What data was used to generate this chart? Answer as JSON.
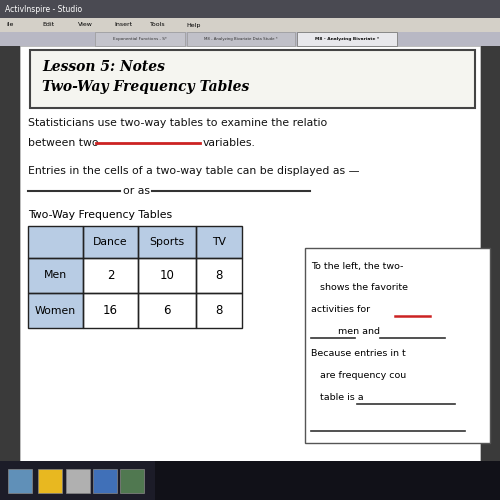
{
  "bg_color": "#3a3a3a",
  "slide_bg": "#ffffff",
  "title_text1": "Lesson 5: Notes",
  "title_text2": "Two-Way Frequency Tables",
  "table_title": "Two-Way Frequency Tables",
  "table_header_labels": [
    "Dance",
    "Sports",
    "TV"
  ],
  "table_row_labels": [
    "Men",
    "Women"
  ],
  "table_data": [
    [
      2,
      10,
      8
    ],
    [
      16,
      6,
      8
    ]
  ],
  "table_header_color": "#b8cce4",
  "table_label_color": "#b8cce4",
  "side_box_lines": [
    "To the left, the two-",
    "   shows the favorite",
    "activities for",
    "         men and",
    "Because entries in t",
    "   are frequency cou",
    "   table is a"
  ],
  "underline_red_color": "#cc2222",
  "underline_black_color": "#333333",
  "titlebar_bg": "#4a4a52",
  "menubar_bg": "#d4d0c8",
  "tabbar_bg": "#b8b8c4",
  "tab_active_bg": "#e8e8ec",
  "tab_inactive_bg": "#c4c4cc",
  "taskbar_bg": "#1c2030"
}
